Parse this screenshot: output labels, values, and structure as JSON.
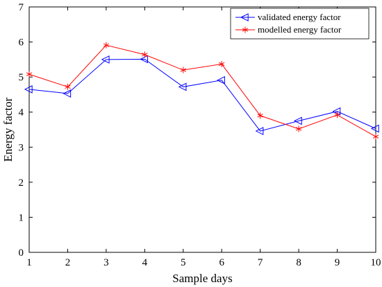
{
  "chart_data": {
    "type": "line",
    "title": "",
    "xlabel": "Sample days",
    "ylabel": "Energy factor",
    "x": [
      1,
      2,
      3,
      4,
      5,
      6,
      7,
      8,
      9,
      10
    ],
    "xlim": [
      1,
      10
    ],
    "ylim": [
      0,
      7
    ],
    "xticks": [
      1,
      2,
      3,
      4,
      5,
      6,
      7,
      8,
      9,
      10
    ],
    "yticks": [
      0,
      1,
      2,
      3,
      4,
      5,
      6,
      7
    ],
    "grid": false,
    "legend_position": "top-right",
    "series": [
      {
        "name": "validated energy factor",
        "color": "#0000ff",
        "marker": "left-triangle",
        "values": [
          4.65,
          4.53,
          5.5,
          5.51,
          4.72,
          4.91,
          3.46,
          3.75,
          4.02,
          3.53
        ]
      },
      {
        "name": "modelled energy factor",
        "color": "#ff0000",
        "marker": "asterisk",
        "values": [
          5.08,
          4.72,
          5.91,
          5.64,
          5.2,
          5.37,
          3.9,
          3.52,
          3.92,
          3.3
        ]
      }
    ]
  }
}
